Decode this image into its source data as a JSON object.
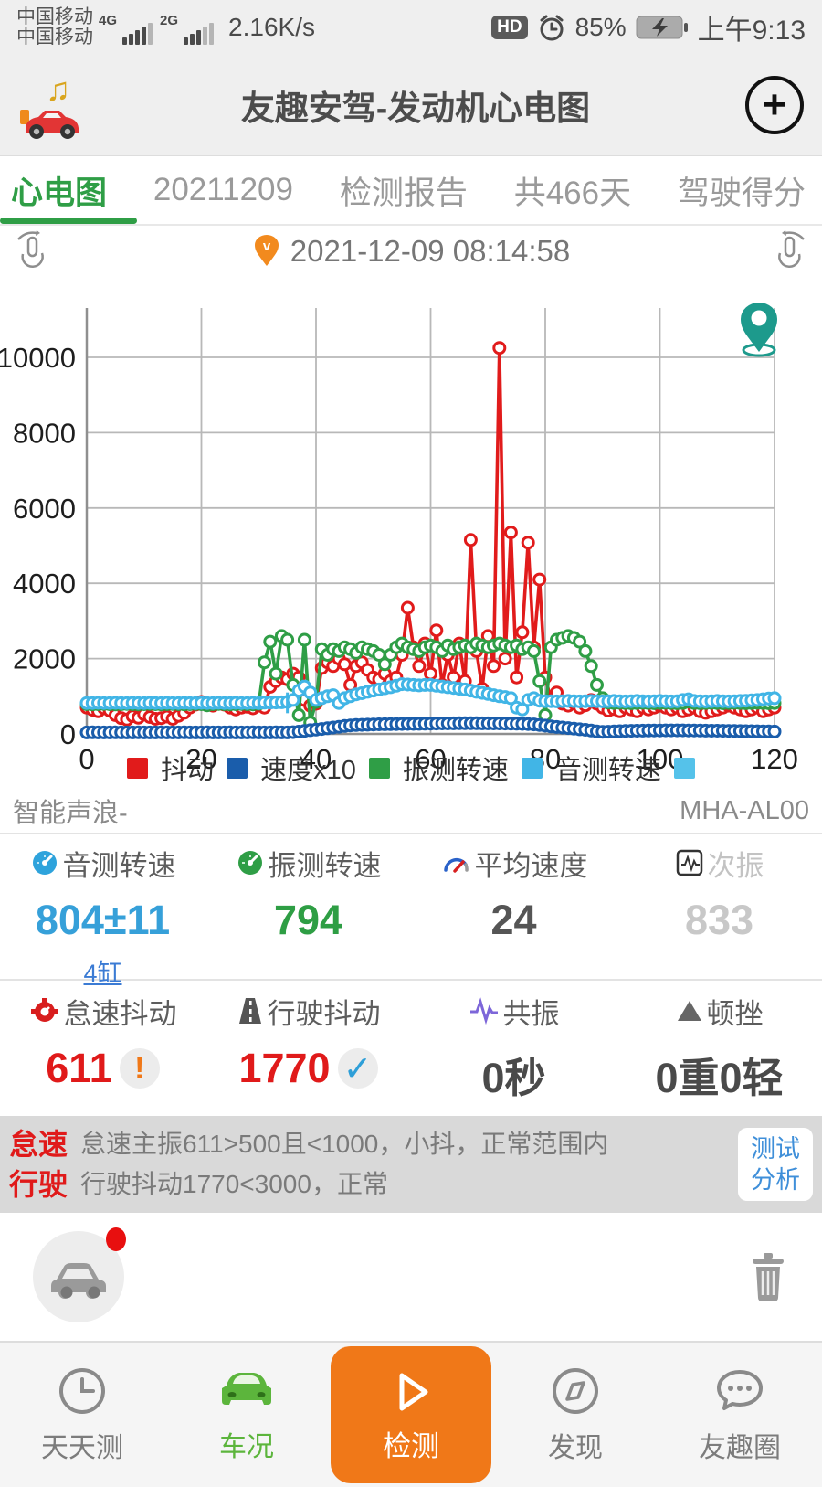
{
  "status_bar": {
    "carrier1": "中国移动",
    "carrier2": "中国移动",
    "net1": "4G",
    "net2": "2G",
    "speed": "2.16K/s",
    "hd": "HD",
    "battery_pct": "85%",
    "time": "上午9:13"
  },
  "title_bar": {
    "title": "友趣安驾-发动机心电图",
    "plus": "+"
  },
  "tabs": {
    "items": [
      {
        "label": "心电图",
        "active": true
      },
      {
        "label": "20211209"
      },
      {
        "label": "检测报告"
      },
      {
        "label": "共466天"
      },
      {
        "label": "驾驶得分"
      }
    ]
  },
  "date_row": {
    "datetime": "2021-12-09 08:14:58",
    "pin_letter": "v"
  },
  "chart_data": {
    "type": "line",
    "x_start": 0,
    "x_end": 120,
    "x_ticks": [
      0,
      20,
      40,
      60,
      80,
      100,
      120
    ],
    "y_ticks": [
      0,
      2000,
      4000,
      6000,
      8000,
      10000
    ],
    "ylim": [
      0,
      11300
    ],
    "grid": true,
    "legend_position": "bottom",
    "draw_order": [
      0,
      2,
      3,
      1
    ],
    "series": [
      {
        "name": "抖动",
        "color": "#e11b1b",
        "values": [
          700,
          640,
          600,
          680,
          620,
          500,
          420,
          380,
          470,
          430,
          520,
          450,
          400,
          420,
          460,
          400,
          480,
          560,
          700,
          780,
          850,
          800,
          750,
          820,
          780,
          700,
          650,
          700,
          720,
          680,
          750,
          700,
          1250,
          1400,
          1500,
          1450,
          1600,
          1500,
          900,
          750,
          800,
          1750,
          1900,
          1800,
          2000,
          1850,
          1300,
          1800,
          1900,
          1700,
          1500,
          1450,
          1600,
          1400,
          1500,
          2100,
          3350,
          2300,
          1800,
          2400,
          1600,
          2750,
          1300,
          2100,
          1500,
          2400,
          1400,
          5150,
          2200,
          1200,
          2600,
          1800,
          10250,
          2000,
          5350,
          1500,
          2700,
          5080,
          2300,
          4100,
          1500,
          900,
          1100,
          800,
          750,
          820,
          700,
          760,
          900,
          800,
          700,
          620,
          660,
          600,
          700,
          650,
          600,
          700,
          650,
          700,
          750,
          700,
          650,
          700,
          600,
          650,
          700,
          600,
          560,
          600,
          650,
          700,
          750,
          700,
          650,
          600,
          650,
          700,
          600,
          650,
          700
        ]
      },
      {
        "name": "速度x10",
        "color": "#1a5dab",
        "values": [
          40,
          42,
          40,
          38,
          40,
          42,
          40,
          38,
          40,
          42,
          40,
          38,
          40,
          42,
          40,
          38,
          40,
          42,
          40,
          38,
          40,
          42,
          40,
          38,
          40,
          42,
          40,
          38,
          40,
          42,
          40,
          38,
          40,
          42,
          40,
          38,
          45,
          60,
          80,
          100,
          115,
          130,
          150,
          170,
          190,
          210,
          225,
          235,
          240,
          245,
          250,
          255,
          258,
          260,
          262,
          264,
          266,
          268,
          270,
          272,
          274,
          276,
          278,
          280,
          282,
          284,
          285,
          284,
          283,
          282,
          281,
          280,
          278,
          276,
          274,
          272,
          268,
          262,
          252,
          238,
          220,
          200,
          185,
          170,
          155,
          140,
          125,
          110,
          90,
          65,
          55,
          58,
          65,
          72,
          78,
          82,
          85,
          88,
          90,
          92,
          93,
          94,
          95,
          95,
          94,
          93,
          92,
          90,
          88,
          86,
          84,
          82,
          80,
          78,
          76,
          74,
          72,
          70,
          68,
          66,
          64
        ]
      },
      {
        "name": "振测转速",
        "color": "#2f9e46",
        "values": [
          790,
          785,
          790,
          795,
          790,
          785,
          790,
          795,
          790,
          785,
          790,
          795,
          790,
          785,
          790,
          795,
          790,
          785,
          790,
          795,
          790,
          760,
          790,
          795,
          790,
          785,
          790,
          795,
          790,
          785,
          800,
          1900,
          2450,
          1600,
          2600,
          2500,
          1300,
          500,
          2500,
          300,
          850,
          2250,
          2100,
          2250,
          2200,
          2300,
          2250,
          2150,
          2300,
          2250,
          2200,
          2100,
          1850,
          2100,
          2300,
          2400,
          2300,
          2250,
          2200,
          2300,
          2350,
          2300,
          2200,
          2350,
          2250,
          2300,
          2350,
          2300,
          2400,
          2350,
          2300,
          2350,
          2400,
          2350,
          2300,
          2350,
          2250,
          2300,
          2200,
          1400,
          500,
          2300,
          2500,
          2550,
          2600,
          2550,
          2450,
          2200,
          1800,
          1300,
          950,
          830,
          820,
          825,
          820,
          815,
          820,
          825,
          820,
          815,
          820,
          825,
          820,
          815,
          820,
          860,
          820,
          815,
          820,
          825,
          820,
          815,
          820,
          825,
          820,
          815,
          820,
          825,
          820,
          815,
          820
        ]
      },
      {
        "name": "音测转速",
        "color": "#41b5e6",
        "values": [
          820,
          820,
          825,
          820,
          820,
          825,
          820,
          820,
          825,
          820,
          820,
          825,
          820,
          820,
          825,
          820,
          820,
          825,
          820,
          820,
          825,
          820,
          820,
          825,
          820,
          820,
          825,
          820,
          820,
          825,
          820,
          830,
          830,
          835,
          840,
          850,
          900,
          1150,
          1260,
          1100,
          900,
          950,
          1000,
          1030,
          820,
          950,
          1000,
          1050,
          1080,
          1120,
          1150,
          1180,
          1210,
          1240,
          1280,
          1320,
          1310,
          1300,
          1290,
          1300,
          1300,
          1280,
          1260,
          1240,
          1220,
          1200,
          1180,
          1150,
          1120,
          1090,
          1060,
          1030,
          1000,
          980,
          950,
          700,
          650,
          900,
          950,
          880,
          870,
          870,
          865,
          870,
          875,
          870,
          865,
          870,
          875,
          870,
          865,
          870,
          875,
          870,
          865,
          870,
          875,
          870,
          865,
          870,
          875,
          870,
          865,
          870,
          900,
          920,
          875,
          870,
          865,
          870,
          875,
          870,
          865,
          870,
          875,
          880,
          890,
          900,
          920,
          940,
          950
        ]
      }
    ],
    "extra_legend_swatch": "#55c2ea",
    "error_bars": {
      "color": "#41b5e6",
      "ticks": [
        {
          "x": 30,
          "y1": 650,
          "y2": 1000
        },
        {
          "x": 35,
          "y1": 550,
          "y2": 1100
        },
        {
          "x": 97,
          "y1": 720,
          "y2": 1000
        },
        {
          "x": 105,
          "y1": 740,
          "y2": 1000
        }
      ]
    }
  },
  "brand_row": {
    "left": "智能声浪-",
    "right": "MHA-AL00"
  },
  "stats_row1": {
    "items": [
      {
        "label": "音测转速",
        "value": "804±11",
        "color": "#36a0d9",
        "link": "4缸"
      },
      {
        "label": "振测转速",
        "value": "794",
        "color": "#2e9e44"
      },
      {
        "label": "平均速度",
        "value": "24",
        "color": "#555555"
      },
      {
        "label": "次振",
        "value": "833",
        "color": "#c8c8c8"
      }
    ]
  },
  "stats_row2": {
    "items": [
      {
        "label": "怠速抖动",
        "value": "611",
        "color": "#e01a1a",
        "badge": "!"
      },
      {
        "label": "行驶抖动",
        "value": "1770",
        "color": "#e01a1a",
        "badge": "✓"
      },
      {
        "label": "共振",
        "value": "0秒",
        "color": "#4a4a4a"
      },
      {
        "label": "顿挫",
        "value": "0重0轻",
        "color": "#4a4a4a"
      }
    ]
  },
  "info_box": {
    "rows": [
      {
        "tag": "怠速",
        "text": "怠速主振611>500且<1000，小抖，正常范围内"
      },
      {
        "tag": "行驶",
        "text": "行驶抖动1770<3000，正常"
      }
    ],
    "button_line1": "测试",
    "button_line2": "分析"
  },
  "nav": {
    "items": [
      {
        "label": "天天测"
      },
      {
        "label": "车况",
        "active": true
      },
      {
        "label": "检测",
        "primary": true
      },
      {
        "label": "发现"
      },
      {
        "label": "友趣圈"
      }
    ]
  }
}
